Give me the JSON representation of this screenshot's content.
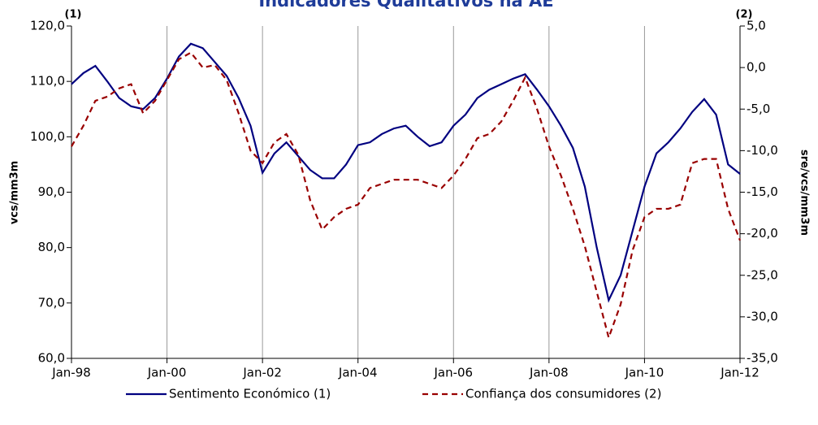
{
  "chart_data": {
    "type": "line",
    "title": "Indicadores Qualitativos na AE",
    "ylabel": "vcs/mm3m",
    "y2label": "sre/vcs/mm3m",
    "y_axis_note": "(1)",
    "y2_axis_note": "(2)",
    "x": [
      1998,
      1998.25,
      1998.5,
      1998.75,
      1999,
      1999.25,
      1999.5,
      1999.75,
      2000,
      2000.25,
      2000.5,
      2000.75,
      2001,
      2001.25,
      2001.5,
      2001.75,
      2002,
      2002.25,
      2002.5,
      2002.75,
      2003,
      2003.25,
      2003.5,
      2003.75,
      2004,
      2004.25,
      2004.5,
      2004.75,
      2005,
      2005.25,
      2005.5,
      2005.75,
      2006,
      2006.25,
      2006.5,
      2006.75,
      2007,
      2007.25,
      2007.5,
      2007.75,
      2008,
      2008.25,
      2008.5,
      2008.75,
      2009,
      2009.25,
      2009.5,
      2009.75,
      2010,
      2010.25,
      2010.5,
      2010.75,
      2011,
      2011.25,
      2011.5,
      2011.75,
      2012
    ],
    "xlim": [
      1998,
      2012
    ],
    "xticks": [
      {
        "value": 1998,
        "label": "Jan-98"
      },
      {
        "value": 2000,
        "label": "Jan-00"
      },
      {
        "value": 2002,
        "label": "Jan-02"
      },
      {
        "value": 2004,
        "label": "Jan-04"
      },
      {
        "value": 2006,
        "label": "Jan-06"
      },
      {
        "value": 2008,
        "label": "Jan-08"
      },
      {
        "value": 2010,
        "label": "Jan-10"
      },
      {
        "value": 2012,
        "label": "Jan-12"
      }
    ],
    "ylim": [
      60,
      120
    ],
    "yticks": [
      {
        "value": 60,
        "label": "60,0"
      },
      {
        "value": 70,
        "label": "70,0"
      },
      {
        "value": 80,
        "label": "80,0"
      },
      {
        "value": 90,
        "label": "90,0"
      },
      {
        "value": 100,
        "label": "100,0"
      },
      {
        "value": 110,
        "label": "110,0"
      },
      {
        "value": 120,
        "label": "120,0"
      }
    ],
    "y2lim": [
      -35,
      5
    ],
    "y2ticks": [
      {
        "value": -35,
        "label": "-35,0"
      },
      {
        "value": -30,
        "label": "-30,0"
      },
      {
        "value": -25,
        "label": "-25,0"
      },
      {
        "value": -20,
        "label": "-20,0"
      },
      {
        "value": -15,
        "label": "-15,0"
      },
      {
        "value": -10,
        "label": "-10,0"
      },
      {
        "value": -5,
        "label": "-5,0"
      },
      {
        "value": 0,
        "label": "0,0"
      },
      {
        "value": 5,
        "label": "5,0"
      }
    ],
    "x_grid": true,
    "series": [
      {
        "name": "Sentimento Económico (1)",
        "color": "#000080",
        "dash": false,
        "values": [
          109.5,
          111.5,
          112.8,
          110,
          107,
          105.5,
          105,
          107,
          110.5,
          114.5,
          116.8,
          116,
          113.5,
          111,
          107,
          102,
          93.5,
          97,
          99,
          96.5,
          94,
          92.5,
          92.5,
          95,
          98.5,
          99,
          100.5,
          101.5,
          102,
          100,
          98.3,
          99,
          102,
          104,
          107,
          108.5,
          109.5,
          110.5,
          111.3,
          108.5,
          105.5,
          102,
          98,
          91,
          80,
          70.5,
          75,
          83,
          91,
          97,
          99,
          101.5,
          104.5,
          106.8,
          104,
          95,
          93.3
        ]
      },
      {
        "name": "Confiança dos consumidores (2)",
        "color": "#990000",
        "dash": true,
        "axis": "y2",
        "values": [
          -9.5,
          -7,
          -4,
          -3.5,
          -2.5,
          -2,
          -5.5,
          -4,
          -1.5,
          1,
          1.8,
          0,
          0.3,
          -1.5,
          -5.5,
          -10,
          -11.5,
          -9,
          -8,
          -10.5,
          -16,
          -19.5,
          -18,
          -17,
          -16.5,
          -14.5,
          -14,
          -13.5,
          -13.5,
          -13.5,
          -14,
          -14.5,
          -13,
          -11,
          -8.5,
          -8,
          -6.5,
          -4,
          -1.2,
          -5,
          -9.5,
          -13,
          -17,
          -21.5,
          -27,
          -32.5,
          -28.5,
          -22,
          -18,
          -17,
          -17,
          -16.5,
          -11.5,
          -11,
          -11,
          -17,
          -20.8
        ]
      }
    ]
  }
}
